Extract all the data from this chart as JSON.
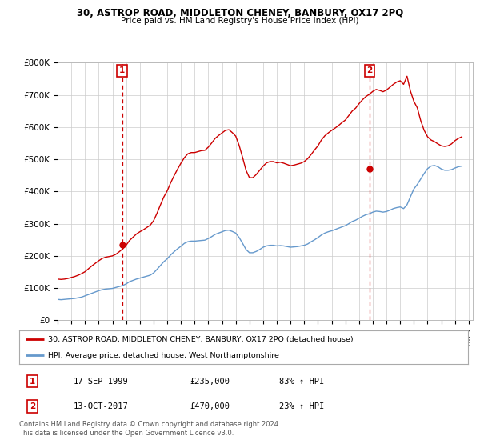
{
  "title": "30, ASTROP ROAD, MIDDLETON CHENEY, BANBURY, OX17 2PQ",
  "subtitle": "Price paid vs. HM Land Registry's House Price Index (HPI)",
  "legend_line1": "30, ASTROP ROAD, MIDDLETON CHENEY, BANBURY, OX17 2PQ (detached house)",
  "legend_line2": "HPI: Average price, detached house, West Northamptonshire",
  "footnote": "Contains HM Land Registry data © Crown copyright and database right 2024.\nThis data is licensed under the Open Government Licence v3.0.",
  "sale1_label": "1",
  "sale1_date": "17-SEP-1999",
  "sale1_price": "£235,000",
  "sale1_hpi": "83% ↑ HPI",
  "sale1_year": 1999.71,
  "sale1_value": 235000,
  "sale2_label": "2",
  "sale2_date": "13-OCT-2017",
  "sale2_price": "£470,000",
  "sale2_hpi": "23% ↑ HPI",
  "sale2_year": 2017.78,
  "sale2_value": 470000,
  "red_color": "#cc0000",
  "blue_color": "#6699cc",
  "dashed_color": "#cc0000",
  "grid_color": "#cccccc",
  "box_color": "#cc0000",
  "ylim": [
    0,
    800000
  ],
  "yticks": [
    0,
    100000,
    200000,
    300000,
    400000,
    500000,
    600000,
    700000,
    800000
  ],
  "ytick_labels": [
    "£0",
    "£100K",
    "£200K",
    "£300K",
    "£400K",
    "£500K",
    "£600K",
    "£700K",
    "£800K"
  ],
  "hpi_data": {
    "years": [
      1995.0,
      1995.25,
      1995.5,
      1995.75,
      1996.0,
      1996.25,
      1996.5,
      1996.75,
      1997.0,
      1997.25,
      1997.5,
      1997.75,
      1998.0,
      1998.25,
      1998.5,
      1998.75,
      1999.0,
      1999.25,
      1999.5,
      1999.75,
      2000.0,
      2000.25,
      2000.5,
      2000.75,
      2001.0,
      2001.25,
      2001.5,
      2001.75,
      2002.0,
      2002.25,
      2002.5,
      2002.75,
      2003.0,
      2003.25,
      2003.5,
      2003.75,
      2004.0,
      2004.25,
      2004.5,
      2004.75,
      2005.0,
      2005.25,
      2005.5,
      2005.75,
      2006.0,
      2006.25,
      2006.5,
      2006.75,
      2007.0,
      2007.25,
      2007.5,
      2007.75,
      2008.0,
      2008.25,
      2008.5,
      2008.75,
      2009.0,
      2009.25,
      2009.5,
      2009.75,
      2010.0,
      2010.25,
      2010.5,
      2010.75,
      2011.0,
      2011.25,
      2011.5,
      2011.75,
      2012.0,
      2012.25,
      2012.5,
      2012.75,
      2013.0,
      2013.25,
      2013.5,
      2013.75,
      2014.0,
      2014.25,
      2014.5,
      2014.75,
      2015.0,
      2015.25,
      2015.5,
      2015.75,
      2016.0,
      2016.25,
      2016.5,
      2016.75,
      2017.0,
      2017.25,
      2017.5,
      2017.75,
      2018.0,
      2018.25,
      2018.5,
      2018.75,
      2019.0,
      2019.25,
      2019.5,
      2019.75,
      2020.0,
      2020.25,
      2020.5,
      2020.75,
      2021.0,
      2021.25,
      2021.5,
      2021.75,
      2022.0,
      2022.25,
      2022.5,
      2022.75,
      2023.0,
      2023.25,
      2023.5,
      2023.75,
      2024.0,
      2024.25,
      2024.5
    ],
    "values": [
      65000,
      64000,
      65000,
      66000,
      67000,
      68000,
      70000,
      72000,
      76000,
      80000,
      84000,
      88000,
      92000,
      95000,
      97000,
      98000,
      99000,
      102000,
      105000,
      108000,
      113000,
      120000,
      124000,
      128000,
      131000,
      134000,
      137000,
      140000,
      147000,
      158000,
      170000,
      182000,
      191000,
      203000,
      213000,
      222000,
      230000,
      239000,
      244000,
      246000,
      246000,
      247000,
      248000,
      249000,
      254000,
      260000,
      267000,
      271000,
      275000,
      279000,
      280000,
      276000,
      271000,
      257000,
      239000,
      220000,
      210000,
      210000,
      214000,
      220000,
      227000,
      231000,
      233000,
      233000,
      231000,
      232000,
      231000,
      229000,
      227000,
      228000,
      229000,
      231000,
      233000,
      237000,
      244000,
      250000,
      257000,
      265000,
      271000,
      275000,
      278000,
      282000,
      286000,
      290000,
      294000,
      300000,
      307000,
      311000,
      317000,
      323000,
      328000,
      331000,
      336000,
      339000,
      338000,
      336000,
      338000,
      342000,
      347000,
      350000,
      352000,
      347000,
      359000,
      384000,
      408000,
      422000,
      439000,
      456000,
      471000,
      479000,
      481000,
      477000,
      470000,
      466000,
      466000,
      468000,
      473000,
      477000,
      479000
    ]
  },
  "red_data": {
    "years": [
      1995.0,
      1995.25,
      1995.5,
      1995.75,
      1996.0,
      1996.25,
      1996.5,
      1996.75,
      1997.0,
      1997.25,
      1997.5,
      1997.75,
      1998.0,
      1998.25,
      1998.5,
      1998.75,
      1999.0,
      1999.25,
      1999.5,
      1999.75,
      2000.0,
      2000.25,
      2000.5,
      2000.75,
      2001.0,
      2001.25,
      2001.5,
      2001.75,
      2002.0,
      2002.25,
      2002.5,
      2002.75,
      2003.0,
      2003.25,
      2003.5,
      2003.75,
      2004.0,
      2004.25,
      2004.5,
      2004.75,
      2005.0,
      2005.25,
      2005.5,
      2005.75,
      2006.0,
      2006.25,
      2006.5,
      2006.75,
      2007.0,
      2007.25,
      2007.5,
      2007.75,
      2008.0,
      2008.25,
      2008.5,
      2008.75,
      2009.0,
      2009.25,
      2009.5,
      2009.75,
      2010.0,
      2010.25,
      2010.5,
      2010.75,
      2011.0,
      2011.25,
      2011.5,
      2011.75,
      2012.0,
      2012.25,
      2012.5,
      2012.75,
      2013.0,
      2013.25,
      2013.5,
      2013.75,
      2014.0,
      2014.25,
      2014.5,
      2014.75,
      2015.0,
      2015.25,
      2015.5,
      2015.75,
      2016.0,
      2016.25,
      2016.5,
      2016.75,
      2017.0,
      2017.25,
      2017.5,
      2017.75,
      2018.0,
      2018.25,
      2018.5,
      2018.75,
      2019.0,
      2019.25,
      2019.5,
      2019.75,
      2020.0,
      2020.25,
      2020.5,
      2020.75,
      2021.0,
      2021.25,
      2021.5,
      2021.75,
      2022.0,
      2022.25,
      2022.5,
      2022.75,
      2023.0,
      2023.25,
      2023.5,
      2023.75,
      2024.0,
      2024.25,
      2024.5
    ],
    "values": [
      128000,
      127000,
      128000,
      130000,
      133000,
      136000,
      140000,
      145000,
      151000,
      160000,
      169000,
      177000,
      185000,
      192000,
      196000,
      198000,
      200000,
      205000,
      213000,
      222000,
      233000,
      248000,
      258000,
      268000,
      275000,
      281000,
      288000,
      295000,
      309000,
      332000,
      358000,
      383000,
      402000,
      427000,
      449000,
      469000,
      488000,
      505000,
      517000,
      521000,
      521000,
      524000,
      527000,
      528000,
      538000,
      551000,
      565000,
      574000,
      582000,
      590000,
      592000,
      583000,
      572000,
      543000,
      506000,
      466000,
      443000,
      443000,
      453000,
      466000,
      479000,
      489000,
      493000,
      493000,
      489000,
      491000,
      488000,
      484000,
      480000,
      482000,
      485000,
      488000,
      493000,
      502000,
      515000,
      529000,
      542000,
      560000,
      573000,
      582000,
      590000,
      597000,
      605000,
      614000,
      622000,
      636000,
      650000,
      659000,
      673000,
      685000,
      695000,
      702000,
      711000,
      717000,
      714000,
      710000,
      715000,
      724000,
      733000,
      740000,
      744000,
      733000,
      758000,
      712000,
      680000,
      660000,
      620000,
      590000,
      570000,
      560000,
      555000,
      548000,
      542000,
      540000,
      542000,
      548000,
      558000,
      565000,
      570000
    ]
  }
}
